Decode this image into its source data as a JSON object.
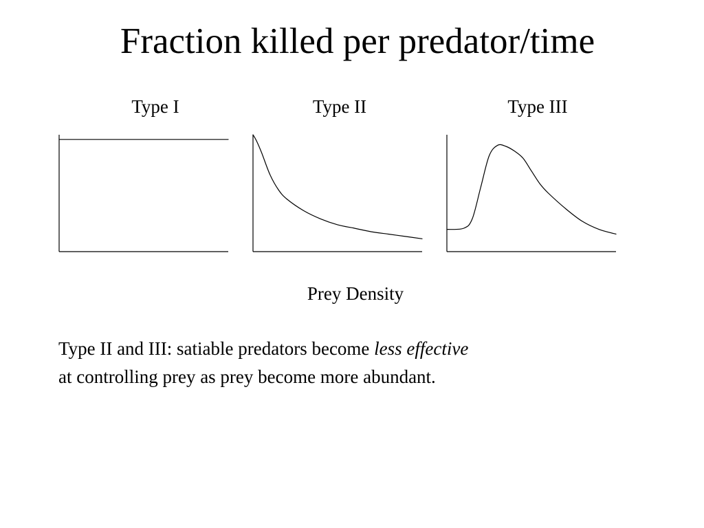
{
  "title": "Fraction killed per predator/time",
  "xlabel": "Prey Density",
  "caption": {
    "line1_prefix": "Type II and III:  satiable predators become ",
    "line1_emphasis": "less effective",
    "line2": "at controlling prey as prey become more abundant."
  },
  "chart_data": [
    {
      "type": "line",
      "title": "Type I",
      "series": [
        {
          "x": [
            0,
            1
          ],
          "y": [
            0.96,
            0.96
          ]
        }
      ],
      "xlim": [
        0,
        1
      ],
      "ylim": [
        0,
        1
      ],
      "grid": false,
      "ticks": false,
      "stroke": "#000000"
    },
    {
      "type": "line",
      "title": "Type II",
      "series": [
        {
          "x": [
            0,
            0.02,
            0.05,
            0.1,
            0.15,
            0.2,
            0.3,
            0.4,
            0.5,
            0.6,
            0.7,
            0.8,
            0.9,
            1.0
          ],
          "y": [
            1.0,
            0.95,
            0.85,
            0.66,
            0.53,
            0.45,
            0.35,
            0.28,
            0.23,
            0.2,
            0.17,
            0.15,
            0.13,
            0.11
          ]
        }
      ],
      "xlim": [
        0,
        1
      ],
      "ylim": [
        0,
        1
      ],
      "grid": false,
      "ticks": false,
      "stroke": "#000000"
    },
    {
      "type": "line",
      "title": "Type III",
      "series": [
        {
          "x": [
            0,
            0.1,
            0.15,
            0.2,
            0.25,
            0.3,
            0.35,
            0.4,
            0.45,
            0.5,
            0.55,
            0.6,
            0.7,
            0.8,
            0.9,
            1.0
          ],
          "y": [
            0.19,
            0.2,
            0.28,
            0.55,
            0.82,
            0.91,
            0.9,
            0.86,
            0.8,
            0.69,
            0.58,
            0.5,
            0.37,
            0.26,
            0.19,
            0.15
          ]
        }
      ],
      "xlim": [
        0,
        1
      ],
      "ylim": [
        0,
        1
      ],
      "grid": false,
      "ticks": false,
      "stroke": "#000000"
    }
  ]
}
